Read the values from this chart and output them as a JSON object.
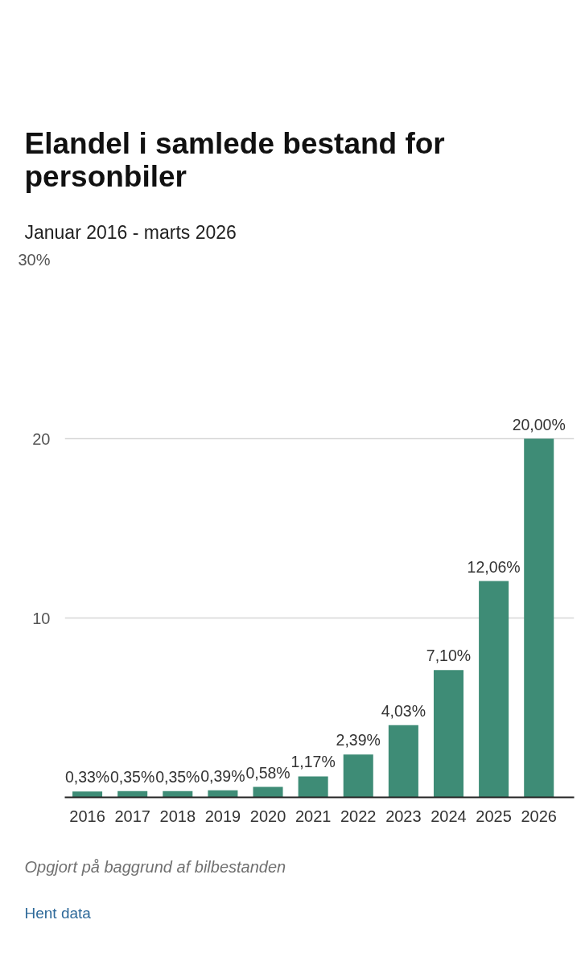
{
  "chart_data": {
    "type": "bar",
    "title": "Elandel i samlede bestand for personbiler",
    "subtitle": "Januar 2016 - marts 2026",
    "categories": [
      "2016",
      "2017",
      "2018",
      "2019",
      "2020",
      "2021",
      "2022",
      "2023",
      "2024",
      "2025",
      "2026"
    ],
    "values": [
      0.33,
      0.35,
      0.35,
      0.39,
      0.58,
      1.17,
      2.39,
      4.03,
      7.1,
      12.06,
      20.0
    ],
    "value_labels": [
      "0,33%",
      "0,35%",
      "0,35%",
      "0,39%",
      "0,58%",
      "1,17%",
      "2,39%",
      "4,03%",
      "7,10%",
      "12,06%",
      "20,00%"
    ],
    "color": "#3e8c76",
    "ylim": [
      0,
      30
    ],
    "yticks": [
      10,
      20,
      {
        "value": 30,
        "label": "30%"
      }
    ],
    "grid": "y",
    "annotations": [
      "Opgjort på baggrund af bilbestanden",
      "Hent data"
    ]
  }
}
